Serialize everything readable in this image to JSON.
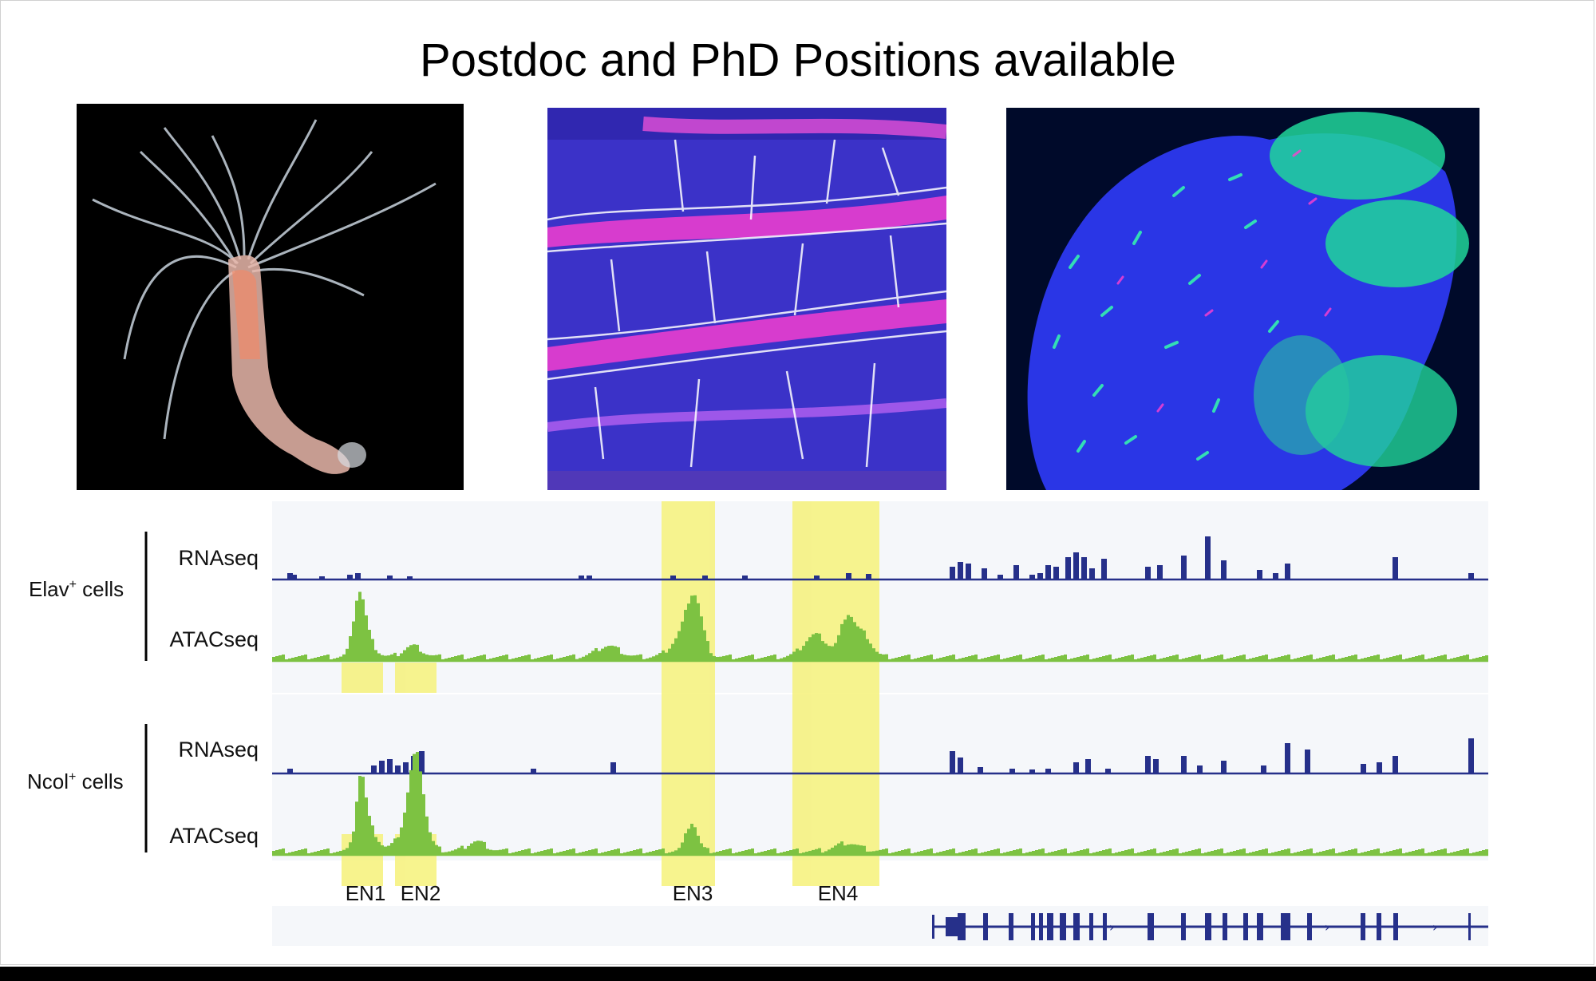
{
  "title": "Postdoc and PhD Positions available",
  "images": [
    {
      "name": "hydra-photo",
      "colors": [
        "#000000",
        "#e8a090",
        "#cfd8e0"
      ]
    },
    {
      "name": "nerve-net-micrograph",
      "colors": [
        "#3a2fd0",
        "#ff33cc",
        "#ffffff"
      ]
    },
    {
      "name": "nematocyte-micrograph",
      "colors": [
        "#2030e0",
        "#33ffaa",
        "#ff33cc"
      ]
    }
  ],
  "groups": [
    {
      "label": "Elav",
      "sup": "+",
      "suffix": " cells"
    },
    {
      "label": "Ncol",
      "sup": "+",
      "suffix": " cells"
    }
  ],
  "track_labels": {
    "rna": "RNAseq",
    "atac": "ATACseq"
  },
  "enhancers": [
    "EN1",
    "EN2",
    "EN3",
    "EN4"
  ],
  "colors": {
    "rna": "#26308a",
    "atac": "#7dc242",
    "highlight": "#f6f27a",
    "track_bg": "#f5f7fa"
  }
}
